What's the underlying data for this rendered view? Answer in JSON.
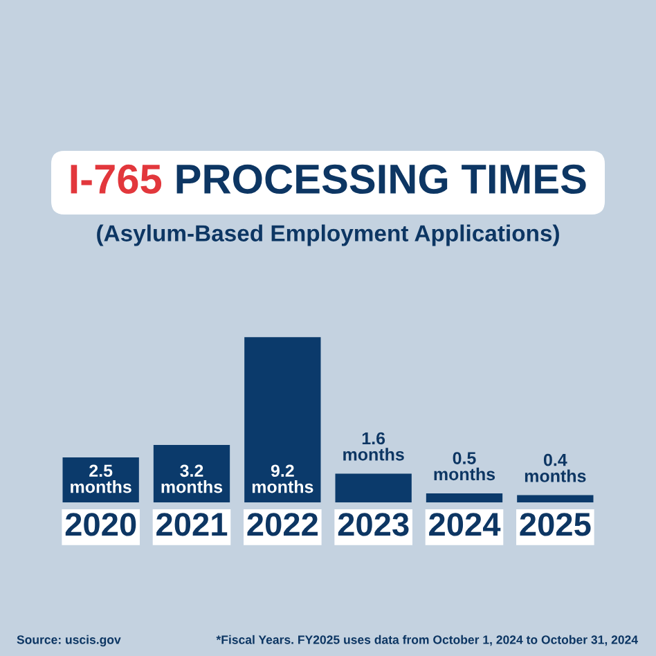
{
  "chart_data": {
    "type": "bar",
    "title": "I-765 PROCESSING TIMES",
    "subtitle": "(Asylum-Based Employment Applications)",
    "categories": [
      "2020",
      "2021",
      "2022",
      "2023",
      "2024",
      "2025"
    ],
    "values": [
      2.5,
      3.2,
      9.2,
      1.6,
      0.5,
      0.4
    ],
    "color": "#0b3a6b",
    "value_labels": [
      "2.5 months",
      "3.2 months",
      "9.2 months",
      "1.6 months",
      "0.5 months",
      "0.4 months"
    ],
    "annotations": [
      "Source: uscis.gov",
      "*Fiscal Years. FY2025 uses data from October 1, 2024 to October 31, 2024"
    ]
  }
}
